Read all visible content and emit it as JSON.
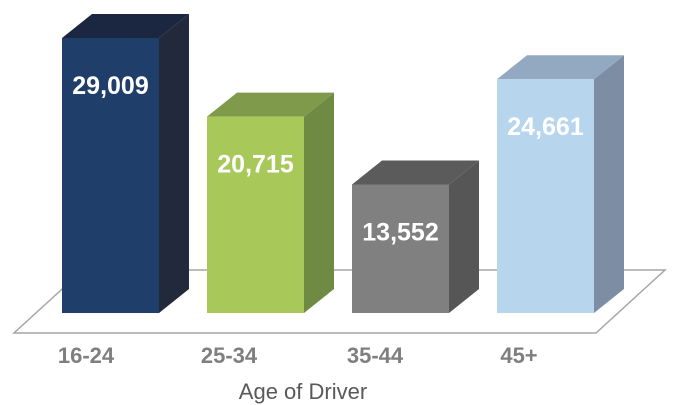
{
  "chart_data": {
    "type": "bar",
    "style": "3d-column",
    "categories": [
      "16-24",
      "25-34",
      "35-44",
      "45+"
    ],
    "values": [
      29009,
      20715,
      13552,
      24661
    ],
    "data_labels": [
      "29,009",
      "20,715",
      "13,552",
      "24,661"
    ],
    "title": "",
    "xlabel": "Age of Driver",
    "ylabel": "",
    "ylim": [
      0,
      30000
    ],
    "grid": false,
    "legend": "none",
    "colors": [
      "#1f3f6a",
      "#a8c95a",
      "#808080",
      "#b8d5ee"
    ],
    "side_colors": [
      "#22293a",
      "#6f8a43",
      "#565656",
      "#7d8ea4"
    ],
    "top_colors": [
      "#1b2740",
      "#7e9a4a",
      "#5b5b5b",
      "#93a9c2"
    ]
  }
}
